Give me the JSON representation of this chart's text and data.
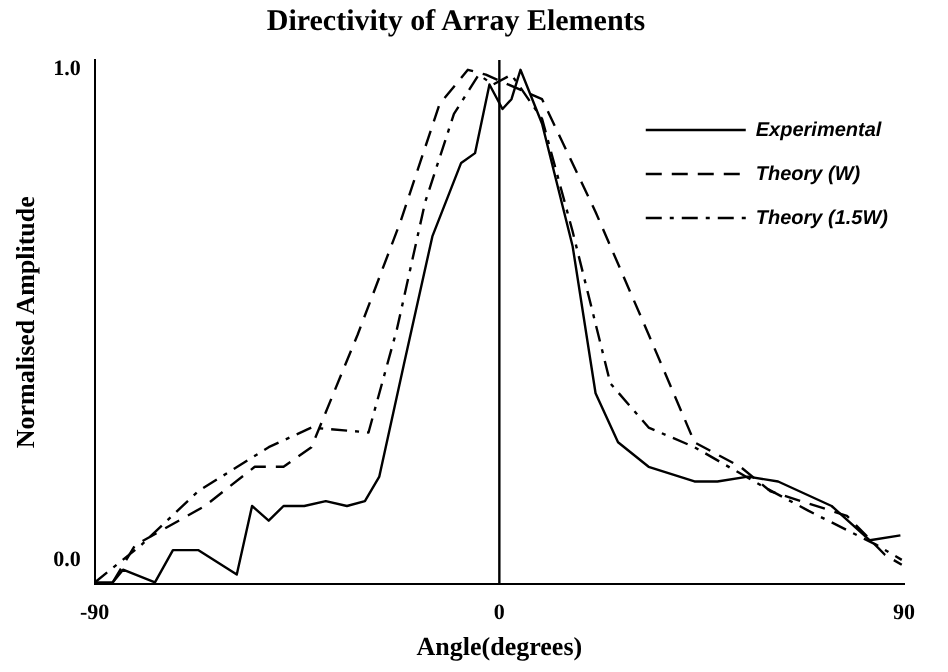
{
  "chart_data": {
    "type": "line",
    "title": "Directivity of Array Elements",
    "xlabel": "Angle(degrees)",
    "ylabel": "Normalised Amplitude",
    "xlim": [
      -90,
      90
    ],
    "xticks": [
      -90,
      0,
      90
    ],
    "ylim": [
      -0.05,
      1.02
    ],
    "yticks": [
      {
        "value": 0,
        "label": "0.0"
      },
      {
        "value": 1,
        "label": "1.0"
      }
    ],
    "grid": false,
    "legend": "top right",
    "marker": "none",
    "ref_lines": [
      {
        "axis": "x",
        "value": 0,
        "color": "#000000",
        "line_style": "solid"
      }
    ],
    "series": [
      {
        "name": "Experimental",
        "color": "#000000",
        "line_style": "solid",
        "x": [
          -90,
          -86,
          -83.7,
          -76.6,
          -72.6,
          -67,
          -58.4,
          -55,
          -51.3,
          -48,
          -43.4,
          -38.6,
          -33.9,
          -29.9,
          -26.7,
          -21.2,
          -14.9,
          -8.5,
          -5.4,
          -2.2,
          0.7,
          2.7,
          4.7,
          9.5,
          16.3,
          21.4,
          26.4,
          33.2,
          43.4,
          48.5,
          55.3,
          62,
          73.9,
          82.4,
          89.2
        ],
        "values": [
          -0.046,
          -0.046,
          -0.02,
          -0.046,
          0.02,
          0.02,
          -0.03,
          0.11,
          0.08,
          0.11,
          0.11,
          0.12,
          0.11,
          0.12,
          0.17,
          0.4,
          0.66,
          0.81,
          0.83,
          0.97,
          0.92,
          0.94,
          1.0,
          0.89,
          0.64,
          0.34,
          0.24,
          0.19,
          0.16,
          0.16,
          0.17,
          0.16,
          0.11,
          0.04,
          0.05
        ]
      },
      {
        "name": "Theory (W)",
        "color": "#000000",
        "line_style": "dashed",
        "x": [
          -86,
          -81,
          -65.5,
          -54.4,
          -48,
          -41.8,
          -31.5,
          -22,
          -13.3,
          -7,
          -3,
          9.5,
          21.4,
          33.2,
          43.4,
          53.6,
          60.3,
          77.3,
          85.8,
          89.5
        ],
        "values": [
          -0.046,
          0.03,
          0.11,
          0.19,
          0.19,
          0.23,
          0.46,
          0.69,
          0.93,
          1.0,
          0.99,
          0.94,
          0.71,
          0.46,
          0.24,
          0.19,
          0.14,
          0.09,
          0.01,
          -0.01
        ]
      },
      {
        "name": "Theory (1.5W)",
        "color": "#000000",
        "line_style": "dashdot",
        "x": [
          -90,
          -79.7,
          -67,
          -51.3,
          -41.8,
          -29.1,
          -22.8,
          -16.5,
          -10.1,
          -4.6,
          -1.4,
          2.7,
          9.5,
          16.3,
          24.7,
          33.2,
          43.4,
          58.6,
          68.8,
          84,
          89.5
        ],
        "values": [
          -0.046,
          0.03,
          0.14,
          0.23,
          0.27,
          0.26,
          0.47,
          0.73,
          0.91,
          0.99,
          0.97,
          0.99,
          0.9,
          0.67,
          0.36,
          0.27,
          0.23,
          0.15,
          0.1,
          0.03,
          0.0
        ]
      }
    ]
  }
}
